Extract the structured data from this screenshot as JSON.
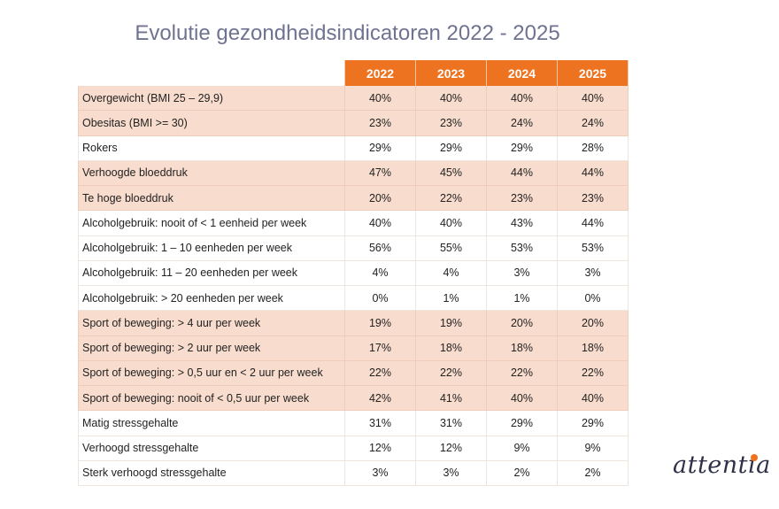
{
  "title": "Evolutie gezondheidsindicatoren 2022 - 2025",
  "logo": "attentia",
  "colors": {
    "header": "#ee7320",
    "highlight_row": "#f8dccd",
    "title": "#6f7291"
  },
  "chart_data": {
    "type": "table",
    "title": "Evolutie gezondheidsindicatoren 2022 - 2025",
    "columns": [
      "2022",
      "2023",
      "2024",
      "2025"
    ],
    "rows": [
      {
        "label": "Overgewicht (BMI 25 – 29,9)",
        "values": [
          "40%",
          "40%",
          "40%",
          "40%"
        ],
        "highlighted": true
      },
      {
        "label": "Obesitas (BMI >= 30)",
        "values": [
          "23%",
          "23%",
          "24%",
          "24%"
        ],
        "highlighted": true
      },
      {
        "label": "Rokers",
        "values": [
          "29%",
          "29%",
          "29%",
          "28%"
        ],
        "highlighted": false
      },
      {
        "label": "Verhoogde bloeddruk",
        "values": [
          "47%",
          "45%",
          "44%",
          "44%"
        ],
        "highlighted": true
      },
      {
        "label": "Te hoge bloeddruk",
        "values": [
          "20%",
          "22%",
          "23%",
          "23%"
        ],
        "highlighted": true
      },
      {
        "label": "Alcoholgebruik: nooit of < 1 eenheid per week",
        "values": [
          "40%",
          "40%",
          "43%",
          "44%"
        ],
        "highlighted": false
      },
      {
        "label": "Alcoholgebruik: 1 – 10 eenheden per week",
        "values": [
          "56%",
          "55%",
          "53%",
          "53%"
        ],
        "highlighted": false
      },
      {
        "label": "Alcoholgebruik: 11 – 20 eenheden per week",
        "values": [
          "4%",
          "4%",
          "3%",
          "3%"
        ],
        "highlighted": false
      },
      {
        "label": "Alcoholgebruik: > 20 eenheden per week",
        "values": [
          "0%",
          "1%",
          "1%",
          "0%"
        ],
        "highlighted": false
      },
      {
        "label": "Sport of beweging: > 4 uur per week",
        "values": [
          "19%",
          "19%",
          "20%",
          "20%"
        ],
        "highlighted": true
      },
      {
        "label": "Sport of beweging: > 2 uur per week",
        "values": [
          "17%",
          "18%",
          "18%",
          "18%"
        ],
        "highlighted": true
      },
      {
        "label": "Sport of beweging: > 0,5 uur en < 2 uur per week",
        "values": [
          "22%",
          "22%",
          "22%",
          "22%"
        ],
        "highlighted": true
      },
      {
        "label": "Sport of beweging: nooit of < 0,5 uur per week",
        "values": [
          "42%",
          "41%",
          "40%",
          "40%"
        ],
        "highlighted": true
      },
      {
        "label": "Matig stressgehalte",
        "values": [
          "31%",
          "31%",
          "29%",
          "29%"
        ],
        "highlighted": false
      },
      {
        "label": "Verhoogd stressgehalte",
        "values": [
          "12%",
          "12%",
          "9%",
          "9%"
        ],
        "highlighted": false
      },
      {
        "label": "Sterk verhoogd stressgehalte",
        "values": [
          "3%",
          "3%",
          "2%",
          "2%"
        ],
        "highlighted": false
      }
    ]
  }
}
